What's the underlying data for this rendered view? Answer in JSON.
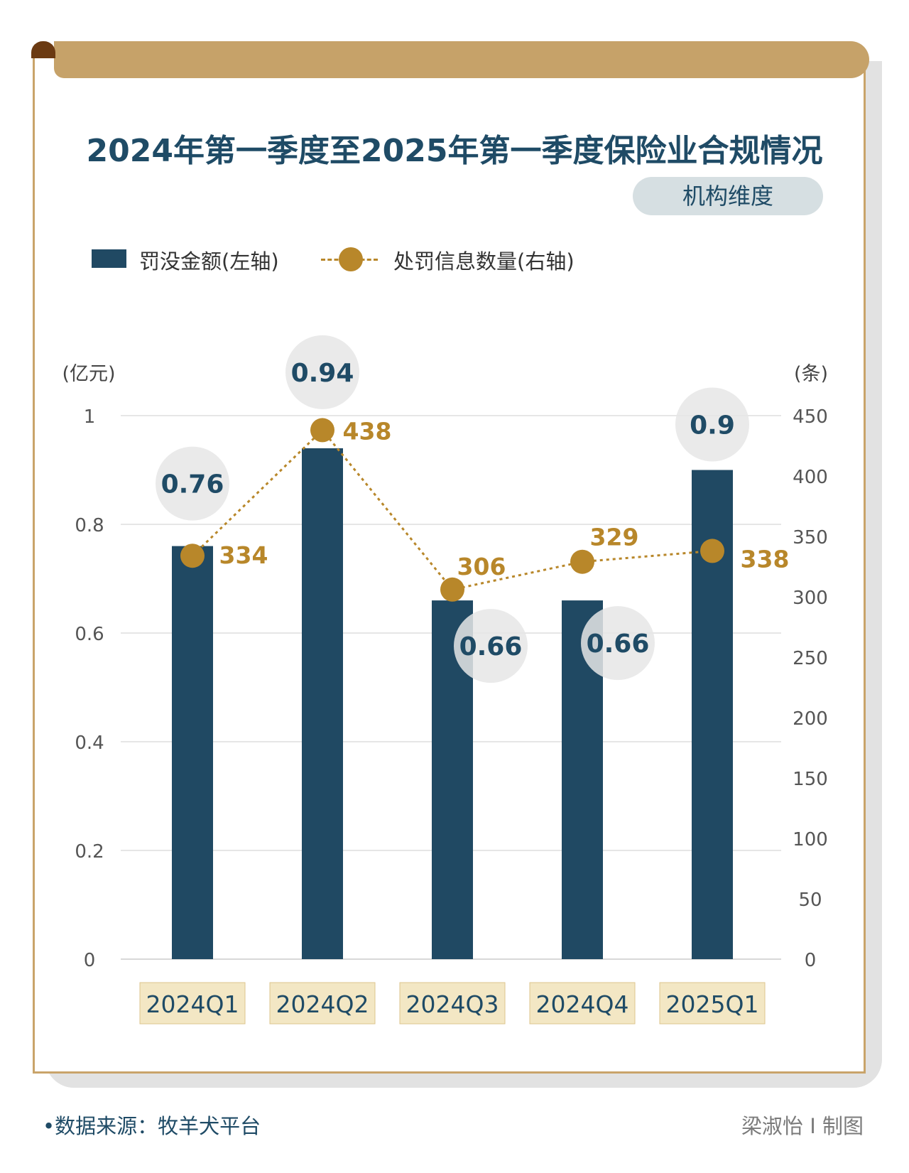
{
  "title": "2024年第一季度至2025年第一季度保险业合规情况",
  "subtitle": "机构维度",
  "legend": {
    "bar_label": "罚没金额(左轴)",
    "line_label": "处罚信息数量(右轴)"
  },
  "colors": {
    "bar": "#204963",
    "line": "#b8872a",
    "accent": "#c6a269",
    "text_dark": "#1f4b66"
  },
  "chart_data": {
    "type": "bar",
    "categories": [
      "2024Q1",
      "2024Q2",
      "2024Q3",
      "2024Q4",
      "2025Q1"
    ],
    "series": [
      {
        "name": "罚没金额(左轴)",
        "type": "bar",
        "axis": "left",
        "values": [
          0.76,
          0.94,
          0.66,
          0.66,
          0.9
        ],
        "labels": [
          "0.76",
          "0.94",
          "0.66",
          "0.66",
          "0.9"
        ]
      },
      {
        "name": "处罚信息数量(右轴)",
        "type": "line",
        "axis": "right",
        "values": [
          334,
          438,
          306,
          329,
          338
        ],
        "labels": [
          "334",
          "438",
          "306",
          "329",
          "338"
        ]
      }
    ],
    "y_left": {
      "unit": "(亿元)",
      "ticks": [
        "0",
        "0.2",
        "0.4",
        "0.6",
        "0.8",
        "1"
      ],
      "range": [
        0,
        1
      ]
    },
    "y_right": {
      "unit": "(条)",
      "ticks": [
        "0",
        "50",
        "100",
        "150",
        "200",
        "250",
        "300",
        "350",
        "400",
        "450"
      ],
      "range": [
        0,
        450
      ]
    },
    "grid": true,
    "legend_position": "top-left"
  },
  "footer": {
    "source": "•数据来源：牧羊犬平台",
    "credit": "梁淑怡 I 制图"
  }
}
